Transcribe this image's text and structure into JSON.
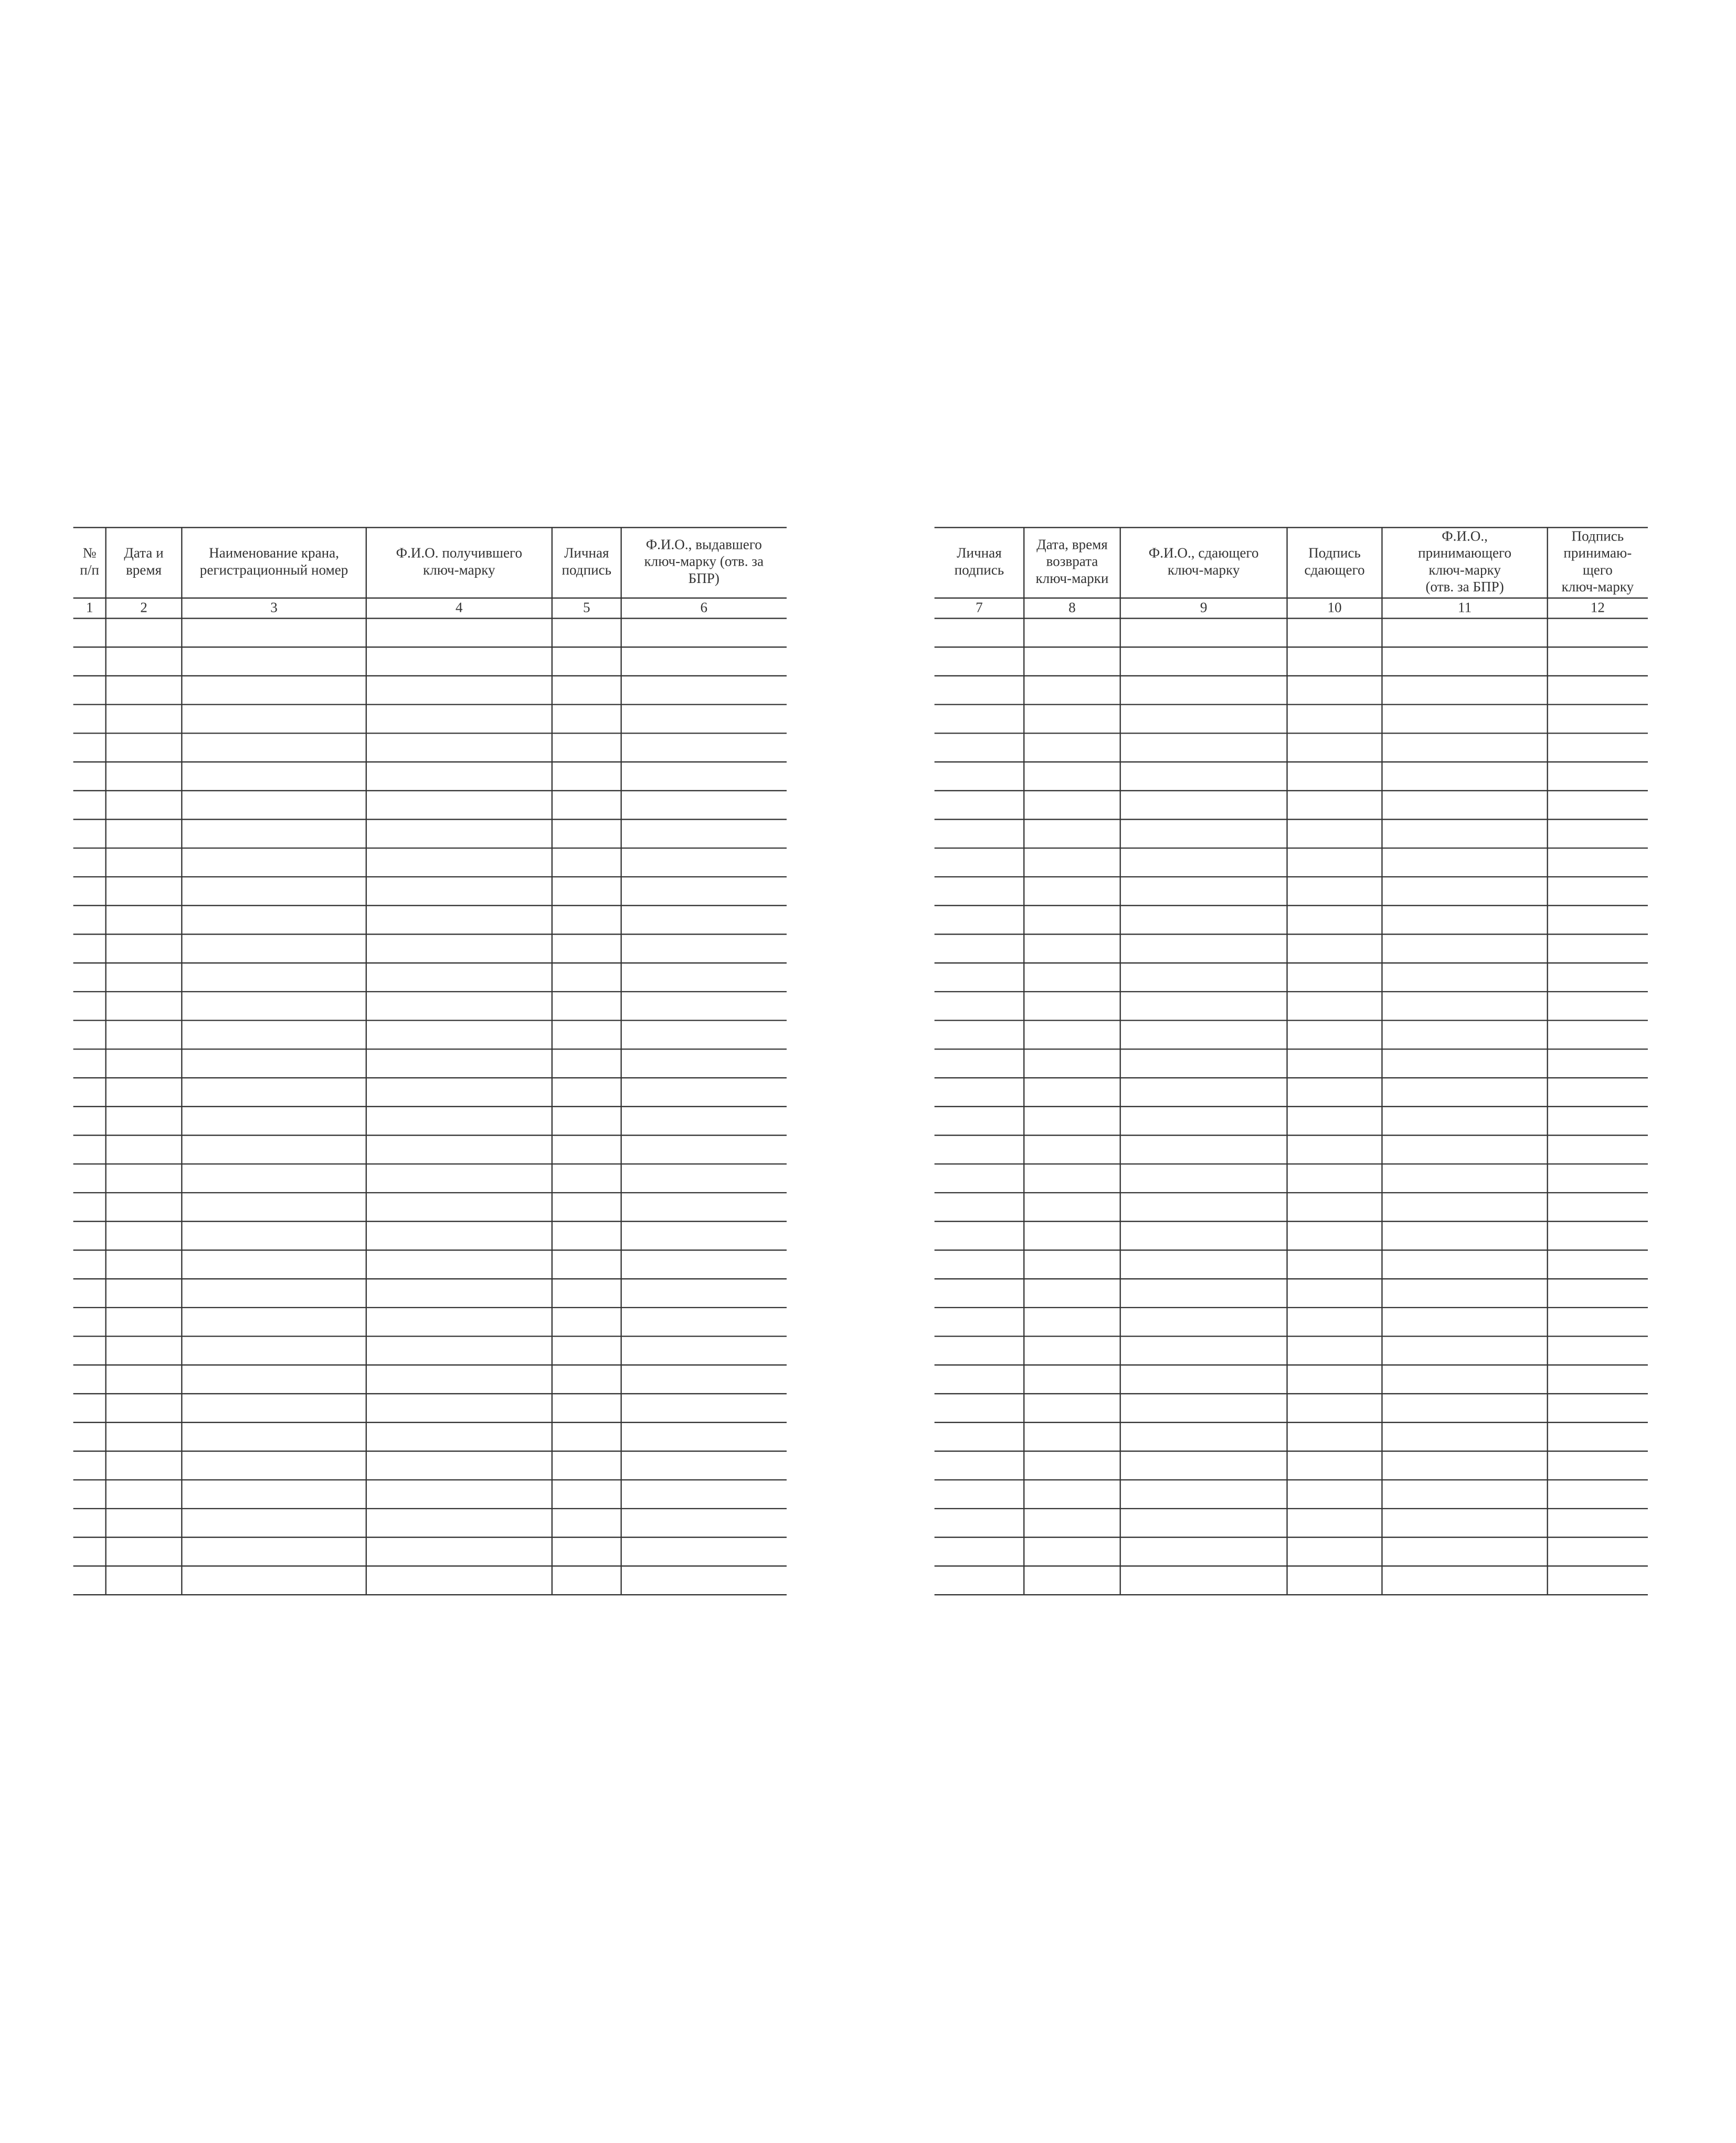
{
  "left_table": {
    "headers": [
      [
        "№",
        "п/п"
      ],
      [
        "Дата и",
        "время"
      ],
      [
        "Наименование крана,",
        "регистрационный номер"
      ],
      [
        "Ф.И.О. получившего",
        "ключ-марку"
      ],
      [
        "Личная",
        "подпись"
      ],
      [
        "Ф.И.О., выдавшего",
        "ключ-марку (отв. за",
        "БПР)"
      ]
    ],
    "numbers": [
      1,
      2,
      3,
      4,
      5,
      6
    ]
  },
  "right_table": {
    "headers": [
      [
        "Личная",
        "подпись"
      ],
      [
        "Дата, время",
        "возврата",
        "ключ-марки"
      ],
      [
        "Ф.И.О., сдающего",
        "ключ-марку"
      ],
      [
        "Подпись",
        "сдающего"
      ],
      [
        "Ф.И.О.,",
        "принимающего",
        "ключ-марку",
        "(отв. за БПР)"
      ],
      [
        "Подпись",
        "принимаю-",
        "щего",
        "ключ-марку"
      ]
    ],
    "numbers": [
      7,
      8,
      9,
      10,
      11,
      12
    ]
  }
}
